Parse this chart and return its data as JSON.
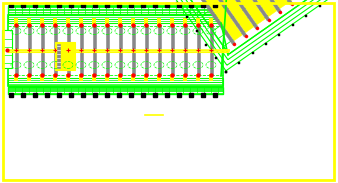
{
  "bg_color": "#ffffff",
  "border_color": "#ffff00",
  "G": "#00ff00",
  "Y": "#ffff00",
  "R": "#ff0000",
  "GR": "#888888",
  "BK": "#000000",
  "fig_width": 3.38,
  "fig_height": 1.83,
  "dpi": 100
}
